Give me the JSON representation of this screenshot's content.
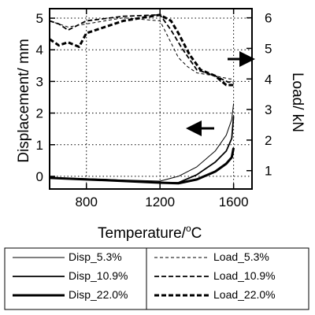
{
  "chart_data": {
    "type": "line",
    "title": "",
    "xlabel": "Temperature/",
    "xlabel_unit_sup": "o",
    "xlabel_unit": "C",
    "ylabel_left": "Displacement/ mm",
    "ylabel_right": "Load/ kN",
    "xlim": [
      600,
      1700
    ],
    "ylim_left": [
      -0.4,
      5.3
    ],
    "ylim_right": [
      0.4,
      6.3
    ],
    "x_ticks": [
      800,
      1200,
      1600
    ],
    "y_ticks_left": [
      0,
      1,
      2,
      3,
      4,
      5
    ],
    "y_ticks_right": [
      1,
      2,
      3,
      4,
      5,
      6
    ],
    "grid": true,
    "legend_placement": "bottom",
    "annotations": [
      {
        "kind": "arrow",
        "direction": "left",
        "refers_to": "left axis"
      },
      {
        "kind": "arrow",
        "direction": "right",
        "refers_to": "right axis"
      }
    ],
    "series": [
      {
        "name": "Disp_5.3%",
        "axis": "left",
        "style": "solid",
        "weight": "thin",
        "x": [
          600,
          900,
          1200,
          1300,
          1400,
          1500,
          1560,
          1590,
          1600
        ],
        "y": [
          -0.05,
          -0.1,
          -0.15,
          0.0,
          0.3,
          0.8,
          1.3,
          1.8,
          2.3
        ]
      },
      {
        "name": "Disp_10.9%",
        "axis": "left",
        "style": "solid",
        "weight": "medium",
        "x": [
          600,
          900,
          1200,
          1300,
          1400,
          1500,
          1560,
          1590,
          1600
        ],
        "y": [
          -0.05,
          -0.1,
          -0.2,
          -0.2,
          0.05,
          0.45,
          0.8,
          1.2,
          1.9
        ]
      },
      {
        "name": "Disp_22.0%",
        "axis": "left",
        "style": "solid",
        "weight": "thick",
        "x": [
          600,
          900,
          1200,
          1300,
          1400,
          1500,
          1560,
          1590,
          1600
        ],
        "y": [
          -0.05,
          -0.12,
          -0.2,
          -0.22,
          -0.1,
          0.15,
          0.4,
          0.6,
          0.9
        ]
      },
      {
        "name": "Load_5.3%",
        "axis": "right",
        "style": "dash",
        "weight": "thin",
        "x": [
          600,
          700,
          800,
          1000,
          1200,
          1250,
          1300,
          1350,
          1400,
          1500,
          1580,
          1600
        ],
        "y": [
          5.9,
          5.7,
          5.8,
          6.0,
          5.9,
          5.3,
          4.7,
          4.4,
          4.2,
          4.1,
          4.0,
          4.0
        ]
      },
      {
        "name": "Load_10.9%",
        "axis": "right",
        "style": "dash",
        "weight": "medium",
        "x": [
          600,
          650,
          700,
          800,
          1000,
          1200,
          1260,
          1320,
          1400,
          1500,
          1570,
          1600
        ],
        "y": [
          5.9,
          5.8,
          5.6,
          5.9,
          6.05,
          6.1,
          5.6,
          5.0,
          4.3,
          4.1,
          3.9,
          3.9
        ]
      },
      {
        "name": "Load_22.0%",
        "axis": "right",
        "style": "dash",
        "weight": "thick",
        "x": [
          600,
          650,
          700,
          760,
          800,
          1000,
          1200,
          1260,
          1300,
          1360,
          1420,
          1500,
          1560,
          1600
        ],
        "y": [
          5.3,
          5.1,
          5.2,
          5.05,
          5.5,
          5.9,
          6.1,
          5.9,
          5.5,
          4.8,
          4.3,
          4.1,
          3.8,
          3.8
        ]
      }
    ]
  }
}
